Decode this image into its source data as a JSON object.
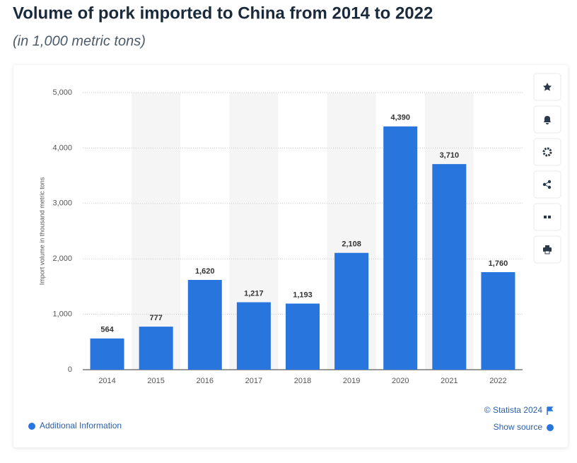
{
  "chart_data": {
    "type": "bar",
    "title": "Volume of pork imported to China from 2014 to 2022",
    "subtitle": "(in 1,000 metric tons)",
    "y_label": "Import volume in thousand metric tons",
    "categories": [
      "2014",
      "2015",
      "2016",
      "2017",
      "2018",
      "2019",
      "2020",
      "2021",
      "2022"
    ],
    "values": [
      564,
      777,
      1620,
      1217,
      1193,
      2108,
      4390,
      3710,
      1760
    ],
    "value_labels": [
      "564",
      "777",
      "1,620",
      "1,217",
      "1,193",
      "2,108",
      "4,390",
      "3,710",
      "1,760"
    ],
    "color": "#2876dd",
    "ylim": [
      0,
      5000
    ],
    "yticks": [
      0,
      {
        "value": 1000,
        "label": "1,000"
      },
      {
        "value": 2000,
        "label": "2,000"
      },
      {
        "value": 3000,
        "label": "3,000"
      },
      {
        "value": 4000,
        "label": "4,000"
      },
      {
        "value": 5000,
        "label": "5,000"
      }
    ],
    "grid": true
  },
  "footer": {
    "credit": "© Statista 2024",
    "source": "Show source",
    "info": "Additional Information"
  }
}
